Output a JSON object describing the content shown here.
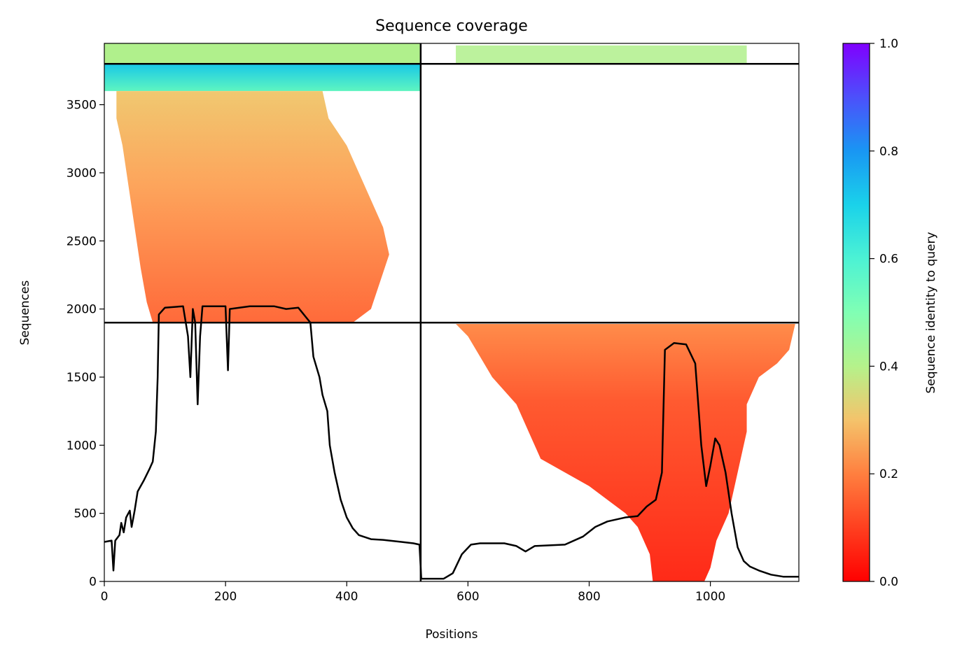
{
  "chart_data": {
    "type": "heatmap",
    "title": "Sequence coverage",
    "xlabel": "Positions",
    "ylabel": "Sequences",
    "xlim": [
      0,
      1146
    ],
    "ylim": [
      0,
      3950
    ],
    "xticks": [
      0,
      200,
      400,
      600,
      800,
      1000
    ],
    "yticks": [
      0,
      500,
      1000,
      1500,
      2000,
      2500,
      3000,
      3500
    ],
    "domain_boundary_x": 522,
    "row_boundaries_y": [
      1900,
      3800
    ],
    "colorbar": {
      "label": "Sequence identity to query",
      "ticks": [
        0.0,
        0.2,
        0.4,
        0.6,
        0.8,
        1.0
      ],
      "range": [
        0,
        1
      ],
      "colormap": "rainbow_r"
    },
    "coverage_blocks": [
      {
        "y0": 3800,
        "y1": 3950,
        "x0": 0,
        "x1": 522,
        "identity": 0.45
      },
      {
        "y0": 3800,
        "y1": 3950,
        "x0": 570,
        "x1": 1060,
        "identity": 0.45
      },
      {
        "y0": 3600,
        "y1": 3800,
        "x0": 0,
        "x1": 522,
        "identity": 0.62
      },
      {
        "y0": 1900,
        "y1": 3600,
        "x0": 20,
        "x1": 490,
        "identity_top": 0.25,
        "identity_bottom": 0.12
      },
      {
        "y0": 0,
        "y1": 1900,
        "x0": 570,
        "x1": 1146,
        "identity_top": 0.18,
        "identity_bottom": 0.05
      }
    ],
    "series": [
      {
        "points": [
          [
            0,
            290
          ],
          [
            12,
            300
          ],
          [
            15,
            80
          ],
          [
            18,
            300
          ],
          [
            25,
            340
          ],
          [
            28,
            430
          ],
          [
            32,
            360
          ],
          [
            36,
            470
          ],
          [
            42,
            520
          ],
          [
            45,
            400
          ],
          [
            50,
            520
          ],
          [
            55,
            660
          ],
          [
            65,
            740
          ],
          [
            75,
            830
          ],
          [
            80,
            880
          ],
          [
            85,
            1100
          ],
          [
            88,
            1500
          ],
          [
            90,
            1960
          ],
          [
            100,
            2010
          ],
          [
            130,
            2020
          ],
          [
            138,
            1800
          ],
          [
            142,
            1500
          ],
          [
            146,
            2000
          ],
          [
            150,
            1900
          ],
          [
            154,
            1300
          ],
          [
            158,
            1800
          ],
          [
            162,
            2020
          ],
          [
            200,
            2020
          ],
          [
            204,
            1550
          ],
          [
            207,
            2000
          ],
          [
            240,
            2020
          ],
          [
            280,
            2020
          ],
          [
            300,
            2000
          ],
          [
            320,
            2010
          ],
          [
            340,
            1900
          ],
          [
            345,
            1650
          ],
          [
            355,
            1500
          ],
          [
            360,
            1370
          ],
          [
            368,
            1250
          ],
          [
            372,
            1000
          ],
          [
            380,
            800
          ],
          [
            390,
            600
          ],
          [
            400,
            470
          ],
          [
            410,
            390
          ],
          [
            420,
            340
          ],
          [
            440,
            310
          ],
          [
            460,
            305
          ],
          [
            490,
            290
          ],
          [
            510,
            280
          ],
          [
            520,
            270
          ],
          [
            523,
            20
          ],
          [
            560,
            20
          ],
          [
            575,
            60
          ],
          [
            590,
            200
          ],
          [
            605,
            270
          ],
          [
            620,
            280
          ],
          [
            660,
            280
          ],
          [
            680,
            260
          ],
          [
            695,
            220
          ],
          [
            710,
            260
          ],
          [
            760,
            270
          ],
          [
            790,
            330
          ],
          [
            810,
            400
          ],
          [
            830,
            440
          ],
          [
            860,
            470
          ],
          [
            880,
            480
          ],
          [
            895,
            550
          ],
          [
            910,
            600
          ],
          [
            920,
            800
          ],
          [
            925,
            1700
          ],
          [
            940,
            1750
          ],
          [
            960,
            1740
          ],
          [
            975,
            1600
          ],
          [
            985,
            1000
          ],
          [
            993,
            700
          ],
          [
            1000,
            850
          ],
          [
            1008,
            1050
          ],
          [
            1015,
            1000
          ],
          [
            1025,
            800
          ],
          [
            1035,
            500
          ],
          [
            1045,
            250
          ],
          [
            1055,
            150
          ],
          [
            1065,
            110
          ],
          [
            1080,
            80
          ],
          [
            1100,
            50
          ],
          [
            1120,
            35
          ],
          [
            1146,
            35
          ]
        ]
      }
    ]
  }
}
